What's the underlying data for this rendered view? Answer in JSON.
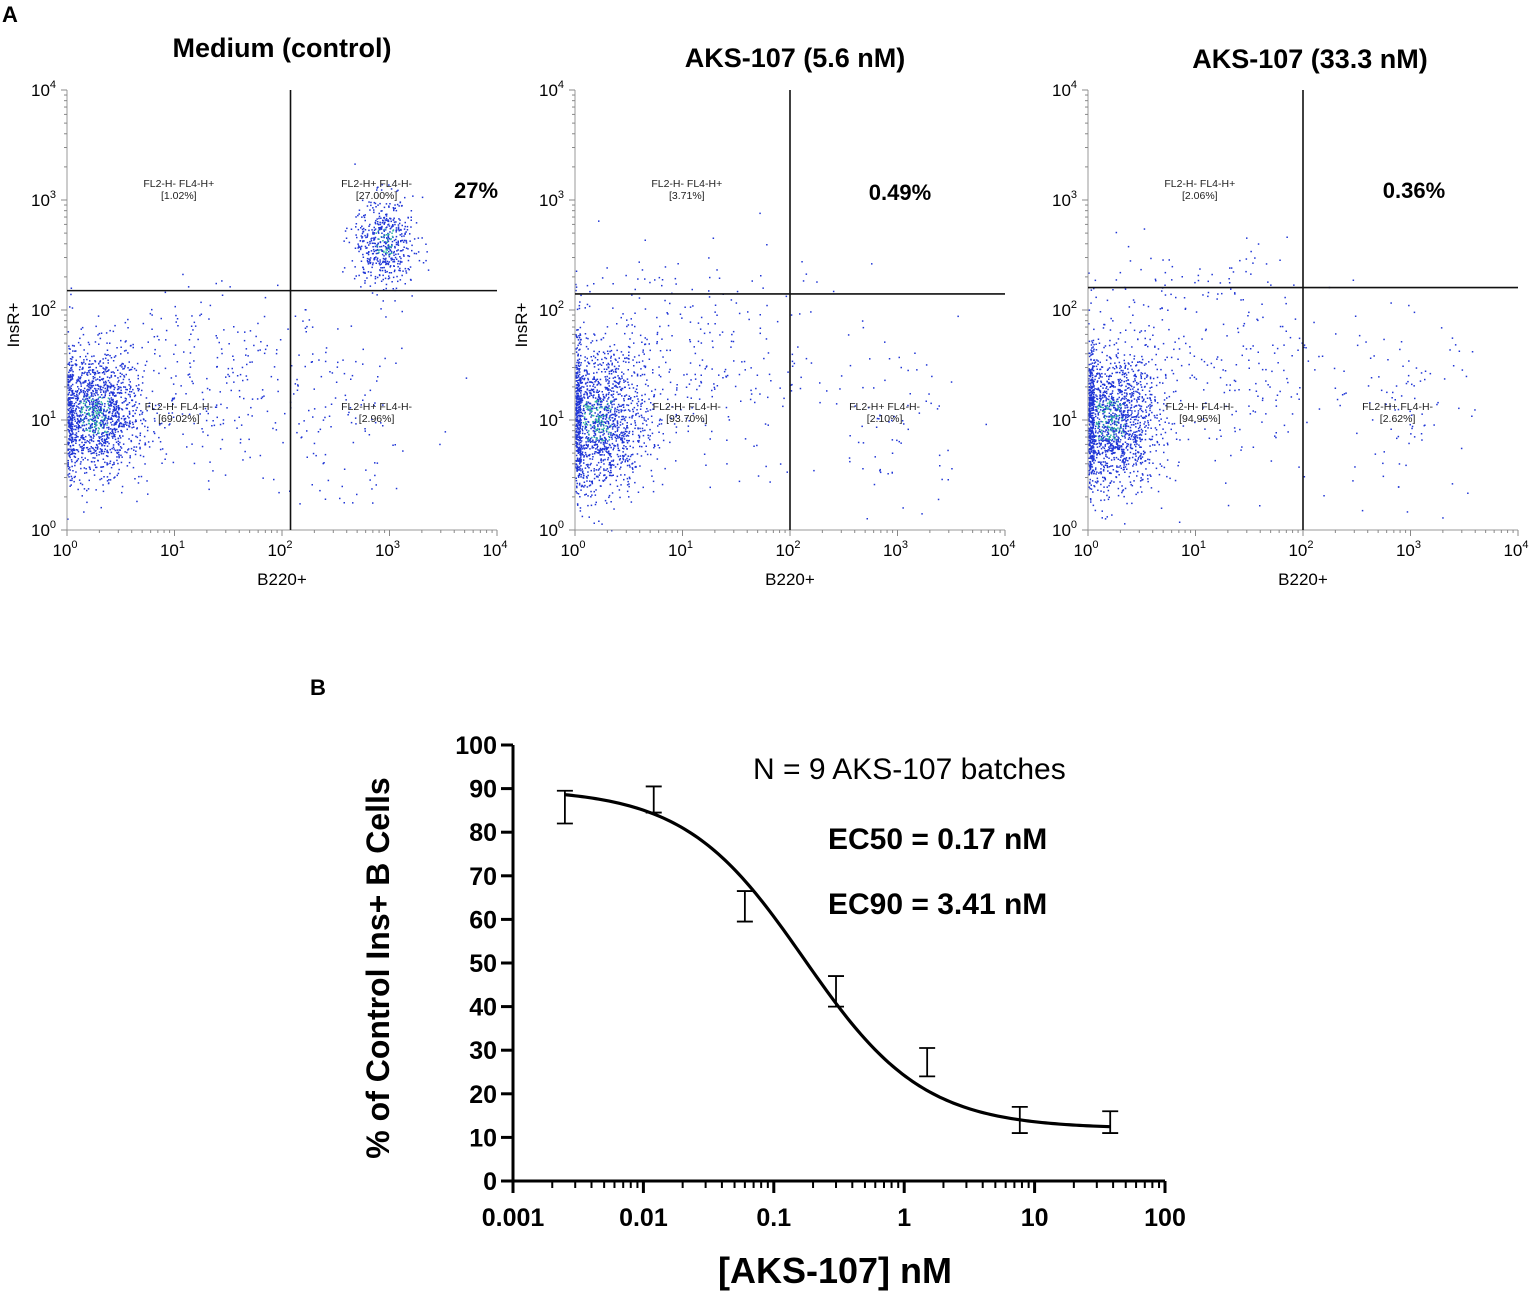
{
  "panel_a": {
    "letter": "A"
  },
  "panel_b": {
    "letter": "B"
  },
  "chart_data": [
    {
      "type": "scatter",
      "subtype": "flow-cytometry-quadrant",
      "title": "Medium (control)",
      "xlabel": "B220+",
      "ylabel": "InsR+",
      "scale": "log",
      "xlim": [
        1,
        10000
      ],
      "ylim": [
        1,
        10000
      ],
      "x_ticks": [
        "10",
        "10",
        "10",
        "10",
        "10"
      ],
      "x_tick_exps": [
        "0",
        "1",
        "2",
        "3",
        "4"
      ],
      "y_ticks": [
        "10",
        "10",
        "10",
        "10",
        "10"
      ],
      "y_tick_exps": [
        "0",
        "1",
        "2",
        "3",
        "4"
      ],
      "gate_x": 120,
      "gate_y": 150,
      "quadrants": [
        {
          "name": "FL2-H- FL4-H+",
          "value": "[1.02%]"
        },
        {
          "name": "FL2-H+ FL4-H-",
          "value": "[27.00%]"
        },
        {
          "name": "FL2-H- FL4-H-",
          "value": "[69.02%]"
        },
        {
          "name": "FL2-H+ FL4-H-",
          "value": "[2.96%]"
        }
      ],
      "highlight": "27%"
    },
    {
      "type": "scatter",
      "subtype": "flow-cytometry-quadrant",
      "title": "AKS-107 (5.6 nM)",
      "xlabel": "B220+",
      "ylabel": "InsR+",
      "scale": "log",
      "xlim": [
        1,
        10000
      ],
      "ylim": [
        1,
        10000
      ],
      "x_ticks": [
        "10",
        "10",
        "10",
        "10",
        "10"
      ],
      "x_tick_exps": [
        "0",
        "1",
        "2",
        "3",
        "4"
      ],
      "y_ticks": [
        "10",
        "10",
        "10",
        "10",
        "10"
      ],
      "y_tick_exps": [
        "0",
        "1",
        "2",
        "3",
        "4"
      ],
      "gate_x": 100,
      "gate_y": 140,
      "quadrants": [
        {
          "name": "FL2-H- FL4-H+",
          "value": "[3.71%]"
        },
        {
          "name": "FL2-H+ FL4-H-",
          "value": ""
        },
        {
          "name": "FL2-H- FL4-H-",
          "value": "[93.70%]"
        },
        {
          "name": "FL2-H+ FL4-H-",
          "value": "[2.10%]"
        }
      ],
      "highlight": "0.49%"
    },
    {
      "type": "scatter",
      "subtype": "flow-cytometry-quadrant",
      "title": "AKS-107 (33.3 nM)",
      "xlabel": "B220+",
      "ylabel": "",
      "scale": "log",
      "xlim": [
        1,
        10000
      ],
      "ylim": [
        1,
        10000
      ],
      "x_ticks": [
        "10",
        "10",
        "10",
        "10",
        "10"
      ],
      "x_tick_exps": [
        "0",
        "1",
        "2",
        "3",
        "4"
      ],
      "y_ticks": [
        "10",
        "10",
        "10",
        "10",
        "10"
      ],
      "y_tick_exps": [
        "0",
        "1",
        "2",
        "3",
        "4"
      ],
      "gate_x": 100,
      "gate_y": 160,
      "quadrants": [
        {
          "name": "FL2-H- FL4-H+",
          "value": "[2.06%]"
        },
        {
          "name": "FL2-H+ FL4-H-",
          "value": ""
        },
        {
          "name": "FL2-H- FL4-H-",
          "value": "[94.95%]"
        },
        {
          "name": "FL2-H+ FL4-H-",
          "value": "[2.62%]"
        }
      ],
      "highlight": "0.36%"
    },
    {
      "type": "line",
      "subtype": "dose-response",
      "title": "",
      "xlabel": "[AKS-107] nM",
      "ylabel": "% of Control Ins+ B Cells",
      "xscale": "log",
      "xlim": [
        0.001,
        100
      ],
      "ylim": [
        0,
        100
      ],
      "x_ticks": [
        0.001,
        0.01,
        0.1,
        1,
        10,
        100
      ],
      "x_tick_labels": [
        "0.001",
        "0.01",
        "0.1",
        "1",
        "10",
        "100"
      ],
      "y_ticks": [
        0,
        10,
        20,
        30,
        40,
        50,
        60,
        70,
        80,
        90,
        100
      ],
      "y_tick_labels": [
        "0",
        "10",
        "20",
        "30",
        "40",
        "50",
        "60",
        "70",
        "80",
        "90",
        "100"
      ],
      "points": [
        {
          "x": 0.0025,
          "low": 82,
          "high": 89.5
        },
        {
          "x": 0.012,
          "low": 84.5,
          "high": 90.5
        },
        {
          "x": 0.06,
          "low": 59.5,
          "high": 66.5
        },
        {
          "x": 0.3,
          "low": 40,
          "high": 47
        },
        {
          "x": 1.5,
          "low": 24,
          "high": 30.5
        },
        {
          "x": 7.7,
          "low": 11,
          "high": 17
        },
        {
          "x": 38,
          "low": 11,
          "high": 16
        }
      ],
      "fit": {
        "model": "4PL",
        "top": 90,
        "bottom": 12,
        "ec50": 0.17,
        "hill": 0.95
      },
      "annotations": {
        "n": "N = 9 AKS-107 batches",
        "ec50": "EC50 = 0.17 nM",
        "ec90": "EC90 = 3.41 nM"
      }
    }
  ]
}
